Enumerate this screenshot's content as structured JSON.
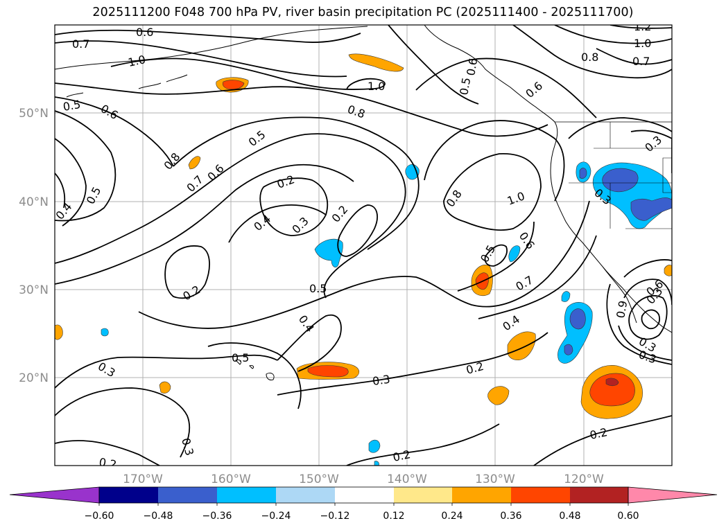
{
  "title": "2025111200 F048 700 hPa PV, river basin precipitation PC (2025111400 - 2025111700)",
  "map": {
    "lon_labels": [
      "170°W",
      "160°W",
      "150°W",
      "140°W",
      "130°W",
      "120°W"
    ],
    "lat_labels": [
      "50°N",
      "40°N",
      "30°N",
      "20°N"
    ],
    "gridline_color": "#b0b0b0",
    "contour_color": "#000000",
    "contour_labels": [
      "0.6",
      "0.7",
      "1.0",
      "0.5",
      "0.6",
      "0.8",
      "0.5",
      "0.4",
      "0.7",
      "0.6",
      "0.5",
      "0.2",
      "0.4",
      "0.3",
      "0.2",
      "1.0",
      "0.8",
      "1.0",
      "0.8",
      "0.6",
      "0.5",
      "0.7",
      "0.2",
      "0.5",
      "0.4",
      "0.5",
      "0.3",
      "0.3",
      "0.2",
      "0.3",
      "0.2",
      "0.2",
      "0.4",
      "0.2",
      "0.3",
      "0.5",
      "0.6",
      "1.2",
      "1.0",
      "0.8",
      "0.7",
      "0.3",
      "0.3",
      "0.9",
      "0.6",
      "0.3",
      "0.3",
      "0.6"
    ]
  },
  "colorbar": {
    "ticks": [
      "−0.60",
      "−0.48",
      "−0.36",
      "−0.24",
      "−0.12",
      "0.12",
      "0.24",
      "0.36",
      "0.48",
      "0.60"
    ],
    "colors": [
      "#9933cc",
      "#00008b",
      "#3a5fcd",
      "#00bfff",
      "#add8f5",
      "#ffffff",
      "#ffe88a",
      "#ffa500",
      "#ff4500",
      "#b22222",
      "#ff88aa"
    ]
  }
}
